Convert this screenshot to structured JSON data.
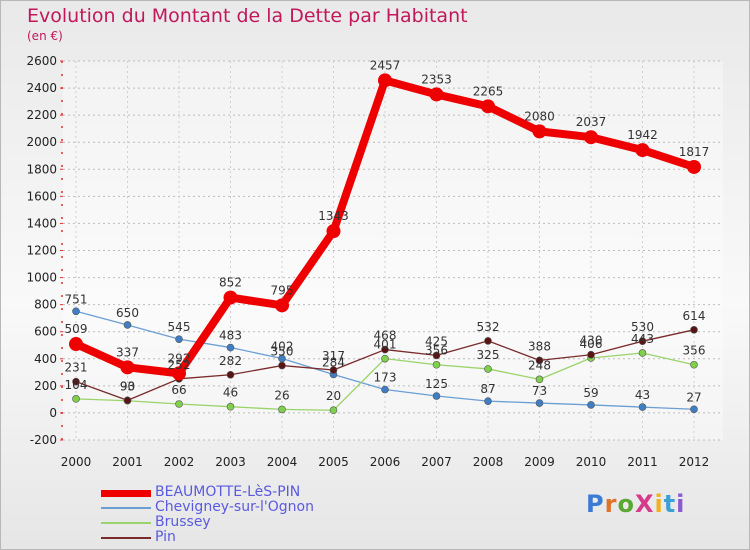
{
  "title": "Evolution du Montant de la Dette par Habitant",
  "subtitle": "(en €)",
  "logo": "ProXiti",
  "chart_data": {
    "type": "line",
    "x": [
      "2000",
      "2001",
      "2002",
      "2003",
      "2004",
      "2005",
      "2006",
      "2007",
      "2008",
      "2009",
      "2010",
      "2011",
      "2012"
    ],
    "ylim": [
      -200,
      2600
    ],
    "yticks": [
      -200,
      0,
      200,
      400,
      600,
      800,
      1000,
      1200,
      1400,
      1600,
      1800,
      2000,
      2200,
      2400,
      2600
    ],
    "grid": true,
    "legend_position": "bottom-left",
    "series": [
      {
        "name": "BEAUMOTTE-LèS-PIN",
        "color": "#ee0000",
        "width": 8,
        "marker": 7,
        "values": [
          509,
          337,
          292,
          852,
          795,
          1343,
          2457,
          2353,
          2265,
          2080,
          2037,
          1942,
          1817
        ]
      },
      {
        "name": "Chevigney-sur-l'Ognon",
        "color": "#6a9fd4",
        "width": 1.3,
        "marker": 3.5,
        "markerColor": "#3f7dc4",
        "values": [
          751,
          650,
          545,
          483,
          402,
          284,
          173,
          125,
          87,
          73,
          59,
          43,
          27
        ]
      },
      {
        "name": "Brussey",
        "color": "#9ad36a",
        "width": 1.3,
        "marker": 3.5,
        "markerColor": "#7fd04a",
        "values": [
          104,
          90,
          66,
          46,
          26,
          20,
          401,
          356,
          325,
          248,
          406,
          443,
          356
        ]
      },
      {
        "name": "Pin",
        "color": "#7a2a2a",
        "width": 1.3,
        "marker": 3.5,
        "markerColor": "#5a1414",
        "values": [
          231,
          93,
          252,
          282,
          350,
          317,
          468,
          425,
          532,
          388,
          430,
          530,
          614
        ]
      }
    ]
  }
}
